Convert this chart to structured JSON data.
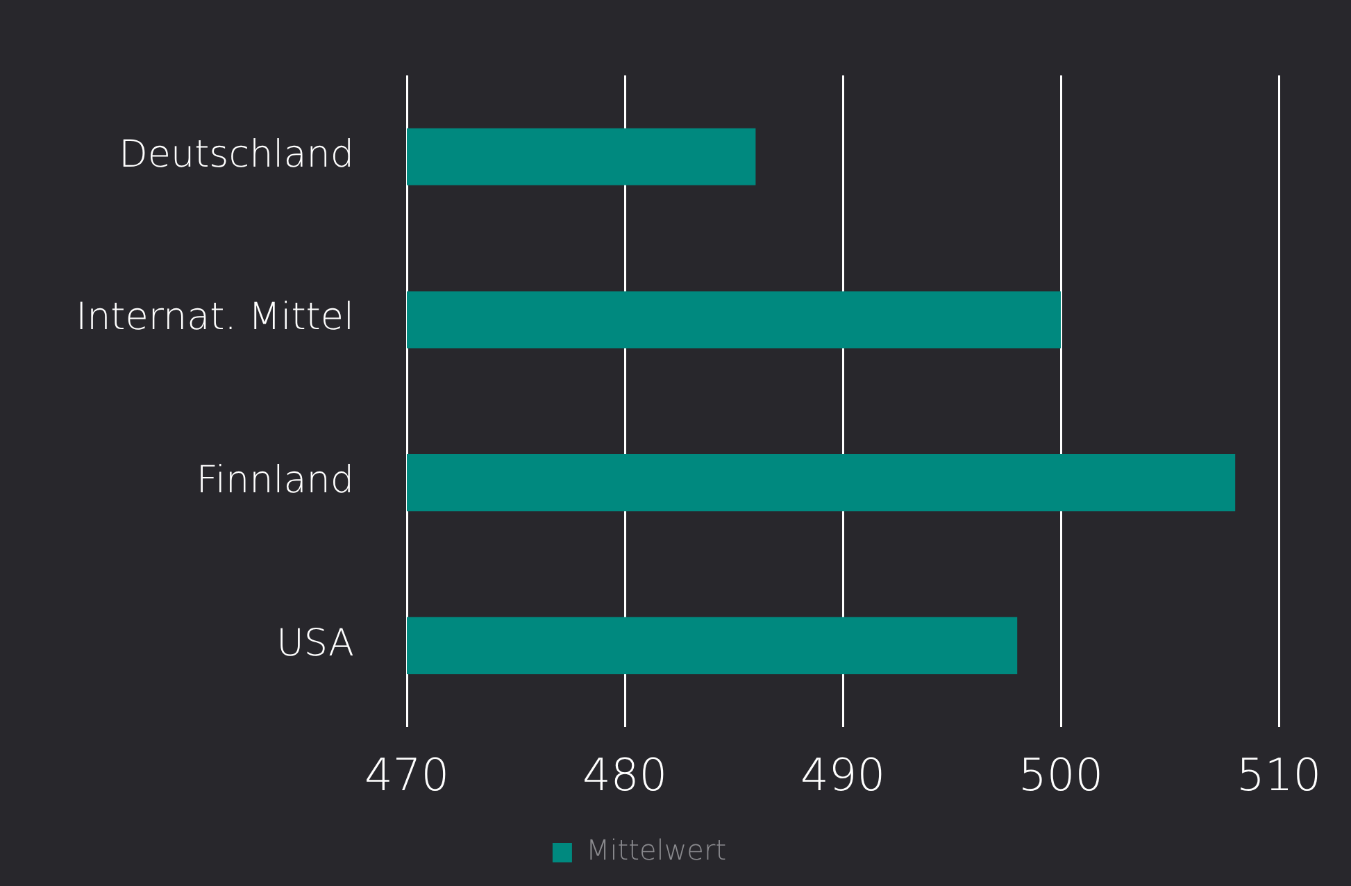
{
  "chart_data": {
    "type": "bar",
    "orientation": "horizontal",
    "categories": [
      "Deutschland",
      "Internat. Mittel",
      "Finnland",
      "USA"
    ],
    "series": [
      {
        "name": "Mittelwert",
        "color": "#00897f",
        "values": [
          486,
          500,
          508,
          498
        ]
      }
    ],
    "xlim": [
      470,
      510
    ],
    "xticks": [
      470,
      480,
      490,
      500,
      510
    ],
    "grid": "x",
    "legend": "bottom"
  }
}
